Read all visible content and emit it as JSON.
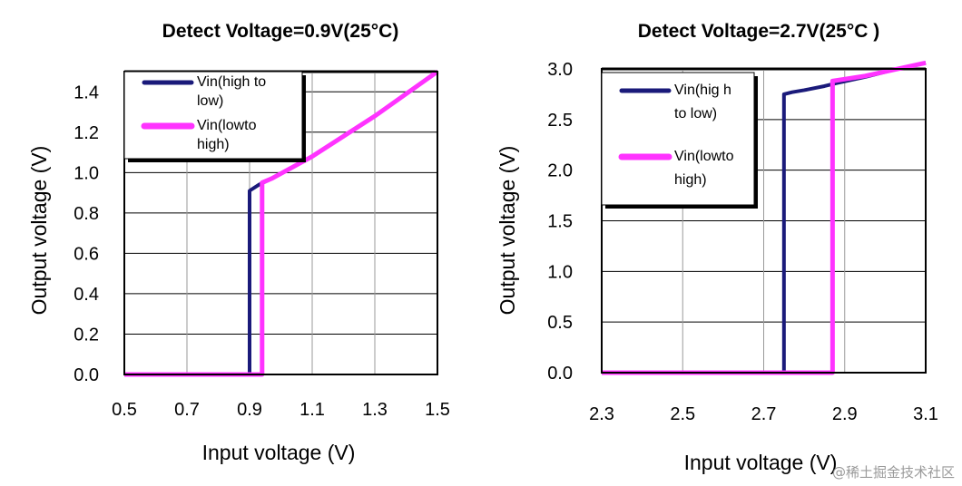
{
  "chart_data": [
    {
      "type": "line",
      "title": "Detect Voltage=0.9V(25°C)",
      "xlabel": "Input voltage (V)",
      "ylabel": "Output voltage (V)",
      "xlim": [
        0.5,
        1.5
      ],
      "ylim": [
        0.0,
        1.5
      ],
      "xticks": [
        "0.5",
        "0.7",
        "0.9",
        "1.1",
        "1.3",
        "1.5"
      ],
      "yticks": [
        "0.0",
        "0.2",
        "0.4",
        "0.6",
        "0.8",
        "1.0",
        "1.2",
        "1.4"
      ],
      "grid": true,
      "legend_position": "top-left",
      "series": [
        {
          "name": "Vin(high to low)",
          "legend_lines": [
            "Vin(high to",
            "low)"
          ],
          "color": "#1a1a7a",
          "x": [
            0.5,
            0.9,
            0.9,
            0.93,
            0.97,
            1.1,
            1.3,
            1.5
          ],
          "y": [
            0.0,
            0.0,
            0.91,
            0.94,
            0.97,
            1.08,
            1.28,
            1.5
          ]
        },
        {
          "name": "Vin(lowto high)",
          "legend_lines": [
            "Vin(lowto",
            "high)"
          ],
          "color": "#ff33ff",
          "x": [
            0.5,
            0.94,
            0.94,
            0.97,
            1.1,
            1.3,
            1.5
          ],
          "y": [
            0.0,
            0.0,
            0.95,
            0.97,
            1.08,
            1.28,
            1.5
          ]
        }
      ]
    },
    {
      "type": "line",
      "title": "Detect Voltage=2.7V(25°C )",
      "xlabel": "Input voltage (V)",
      "ylabel": "Output voltage (V)",
      "xlim": [
        2.3,
        3.1
      ],
      "ylim": [
        0.0,
        3.0
      ],
      "xticks": [
        "2.3",
        "2.5",
        "2.7",
        "2.9",
        "3.1"
      ],
      "yticks": [
        "0.0",
        "0.5",
        "1.0",
        "1.5",
        "2.0",
        "2.5",
        "3.0"
      ],
      "grid": true,
      "legend_position": "top-left",
      "series": [
        {
          "name": "Vin(high to low)",
          "legend_lines": [
            "Vin(hig h",
            "to low)"
          ],
          "color": "#1a1a7a",
          "x": [
            2.3,
            2.75,
            2.75,
            2.77,
            2.8,
            2.85,
            2.88,
            2.95,
            3.02,
            3.1
          ],
          "y": [
            0.0,
            0.0,
            2.75,
            2.77,
            2.79,
            2.83,
            2.86,
            2.92,
            2.99,
            3.06
          ]
        },
        {
          "name": "Vin(lowto high)",
          "legend_lines": [
            "Vin(lowto",
            "high)"
          ],
          "color": "#ff33ff",
          "x": [
            2.3,
            2.87,
            2.87,
            2.95,
            3.02,
            3.1
          ],
          "y": [
            0.0,
            0.0,
            2.88,
            2.93,
            2.99,
            3.06
          ]
        }
      ]
    }
  ],
  "watermark": "@稀土掘金技术社区"
}
